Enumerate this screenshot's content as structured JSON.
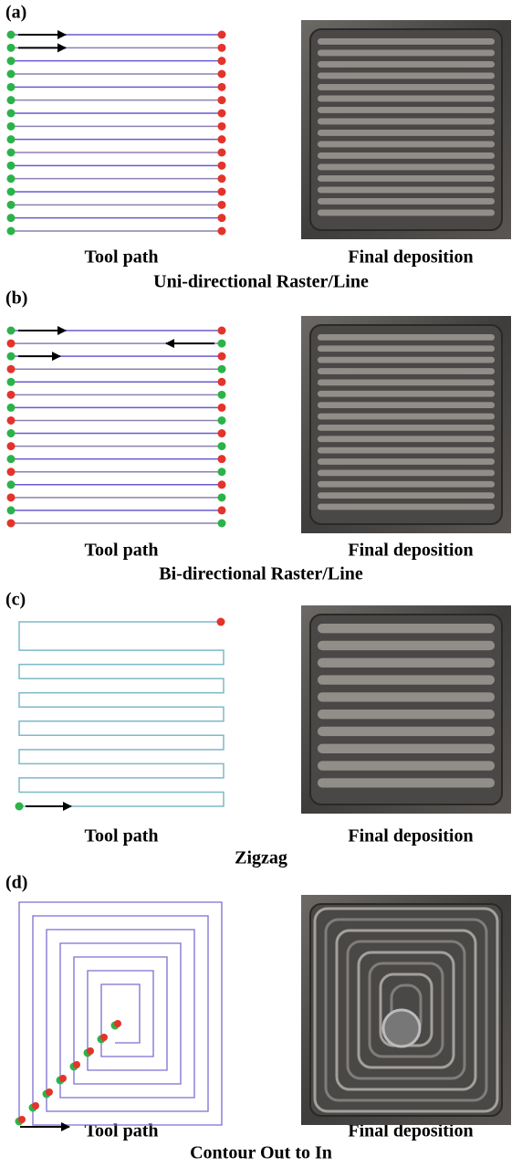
{
  "panels": [
    {
      "label": "(a)",
      "left_caption": "Tool path",
      "right_caption": "Final deposition",
      "title": "Uni-directional Raster/Line"
    },
    {
      "label": "(b)",
      "left_caption": "Tool path",
      "right_caption": "Final deposition",
      "title": "Bi-directional Raster/Line"
    },
    {
      "label": "(c)",
      "left_caption": "Tool path",
      "right_caption": "Final deposition",
      "title": "Zigzag"
    },
    {
      "label": "(d)",
      "left_caption": "Tool path",
      "right_caption": "Final deposition",
      "title": "Contour Out to In"
    }
  ]
}
